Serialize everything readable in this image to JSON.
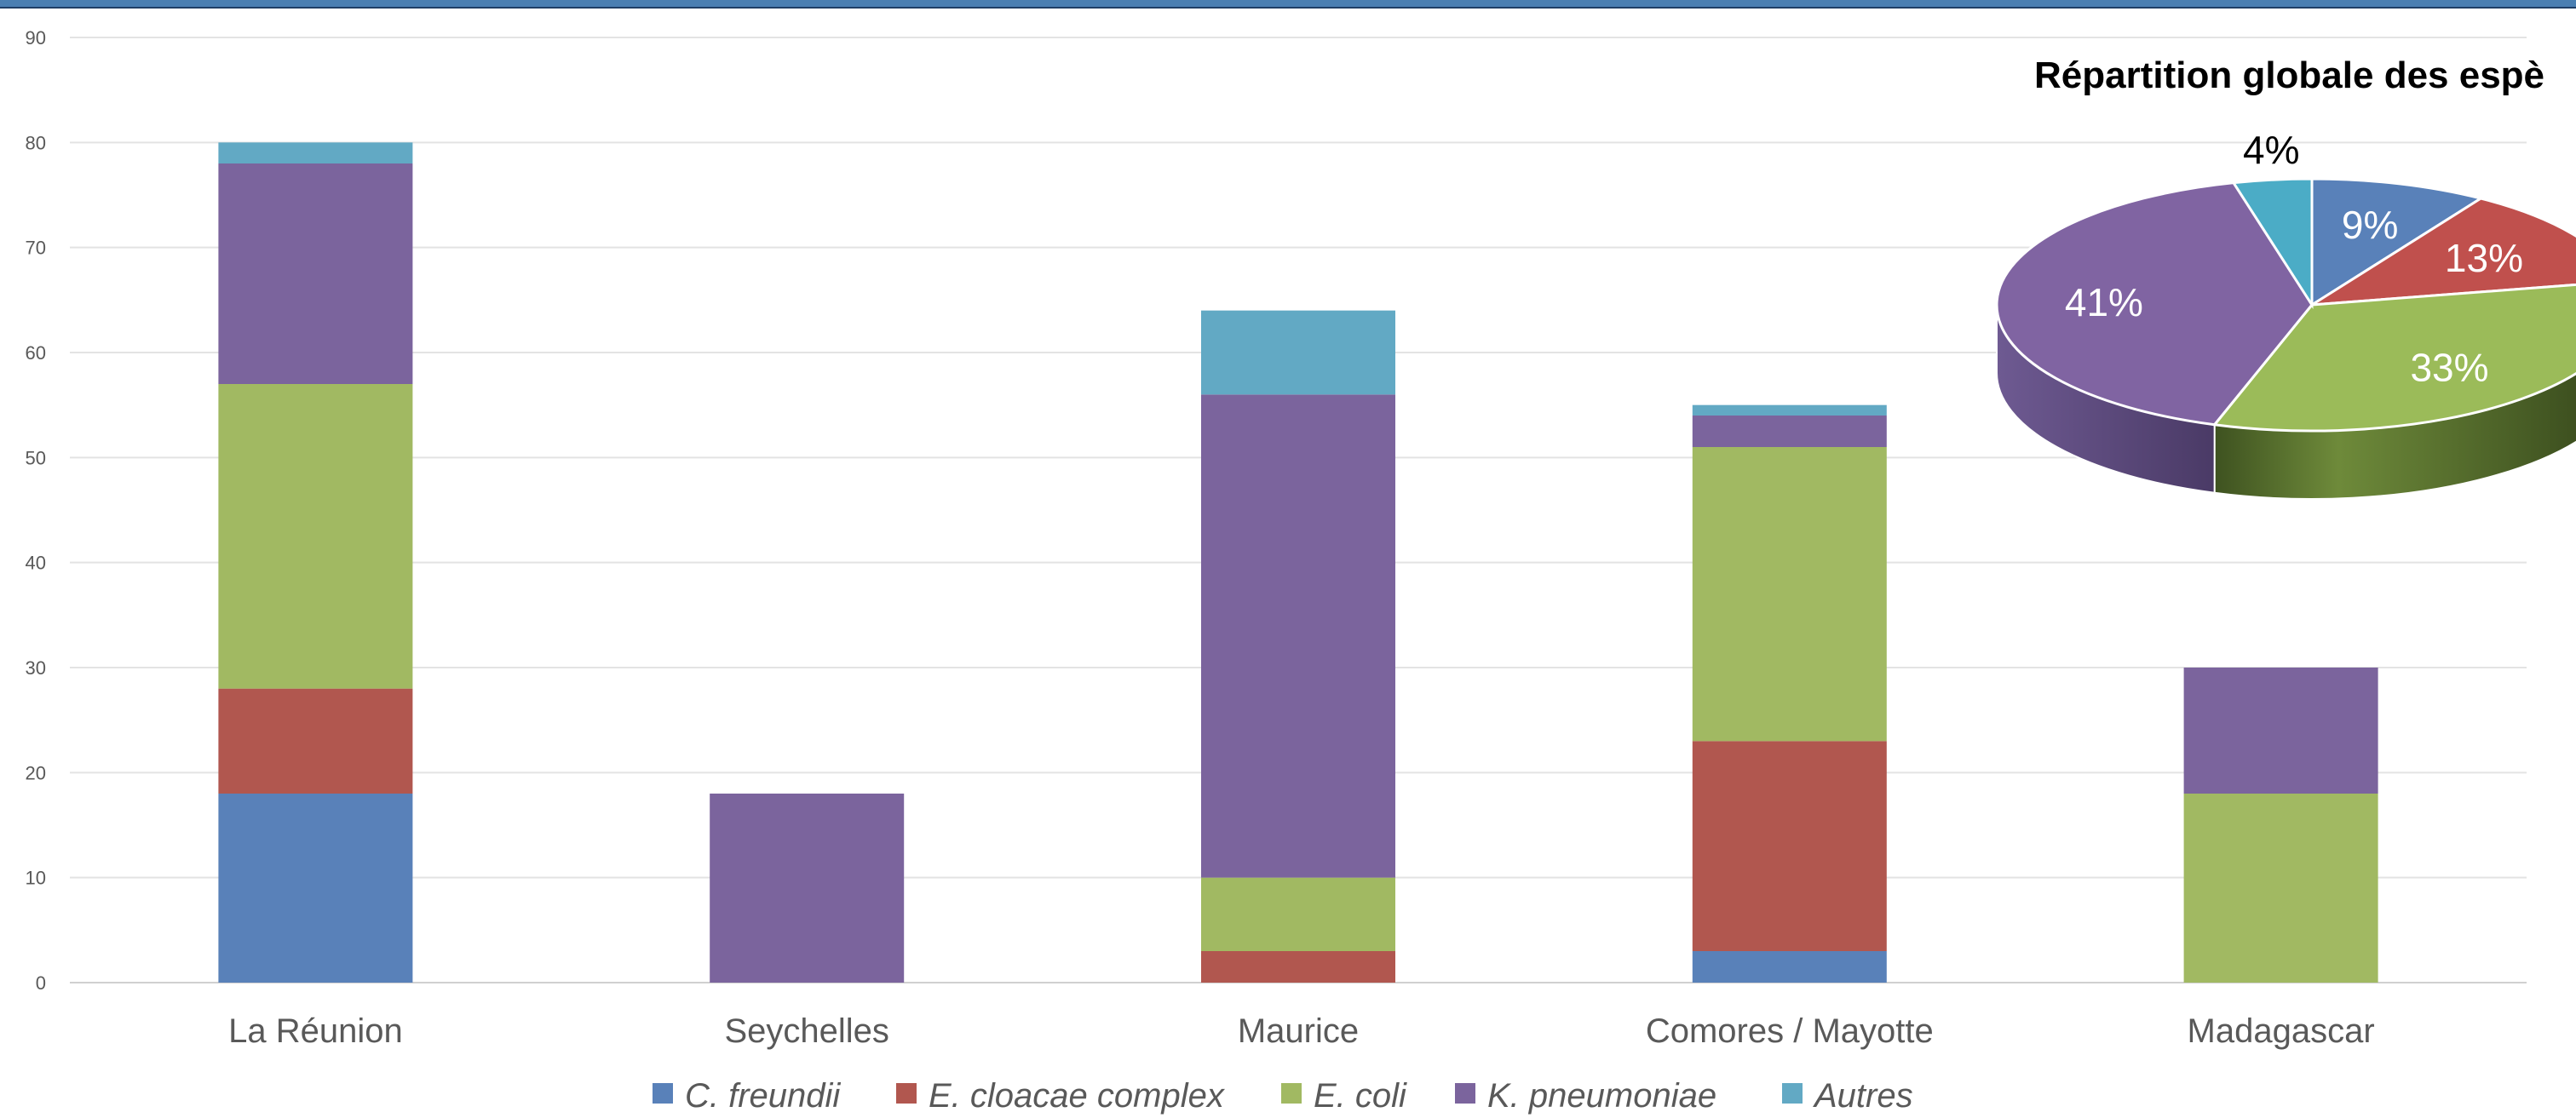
{
  "chart_data": [
    {
      "type": "bar",
      "stacked": true,
      "categories": [
        "La Réunion",
        "Seychelles",
        "Maurice",
        "Comores / Mayotte",
        "Madagascar"
      ],
      "ylim": [
        0,
        90
      ],
      "yticks": [
        0,
        10,
        20,
        30,
        40,
        50,
        60,
        70,
        80,
        90
      ],
      "grid": true,
      "legend_position": "bottom",
      "series": [
        {
          "name": "C. freundii",
          "color": "#5981b9",
          "values": [
            18,
            0,
            0,
            3,
            0
          ]
        },
        {
          "name": "E. cloacae complex",
          "color": "#b1574f",
          "values": [
            10,
            0,
            3,
            20,
            0
          ]
        },
        {
          "name": "E. coli",
          "color": "#a1b962",
          "values": [
            29,
            0,
            7,
            28,
            18
          ]
        },
        {
          "name": "K. pneumoniae",
          "color": "#7b649d",
          "values": [
            21,
            18,
            46,
            3,
            12
          ]
        },
        {
          "name": "Autres",
          "color": "#62a9c4",
          "values": [
            2,
            0,
            8,
            1,
            0
          ]
        }
      ]
    },
    {
      "type": "pie",
      "title": "Répartition globale des espè",
      "slices": [
        {
          "label": "9%",
          "value": 9,
          "color": "#5981b9"
        },
        {
          "label": "13%",
          "value": 13,
          "color": "#c0504d"
        },
        {
          "label": "33%",
          "value": 33,
          "color": "#9bbb59"
        },
        {
          "label": "41%",
          "value": 41,
          "color": "#8064a2"
        },
        {
          "label": "4%",
          "value": 4,
          "color": "#4bacc6"
        }
      ]
    }
  ]
}
